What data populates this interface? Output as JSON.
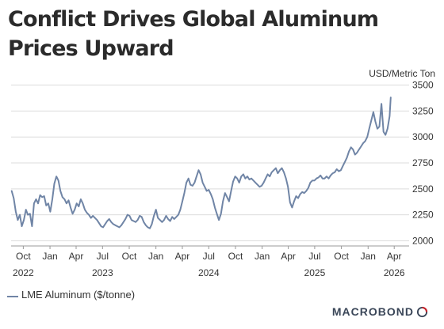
{
  "title": "Conflict Drives Global Aluminum Prices Upward",
  "brand": "MACROBOND",
  "chart_data": {
    "type": "line",
    "title": "Conflict Drives Global Aluminum Prices Upward",
    "xlabel": "",
    "ylabel": "USD/Metric Ton",
    "unit_label": "USD/Metric Ton",
    "ylim": [
      1950,
      3550
    ],
    "xlim": [
      "2022-08-20",
      "2026-04-25"
    ],
    "yticks": [
      2000,
      2250,
      2500,
      2750,
      3000,
      3250,
      3500
    ],
    "xticks": [
      {
        "date": "2022-10-01",
        "label": "Oct",
        "year": "2022"
      },
      {
        "date": "2023-01-01",
        "label": "Jan"
      },
      {
        "date": "2023-04-01",
        "label": "Apr"
      },
      {
        "date": "2023-07-01",
        "label": "Jul",
        "year": "2023"
      },
      {
        "date": "2023-10-01",
        "label": "Oct"
      },
      {
        "date": "2024-01-01",
        "label": "Jan"
      },
      {
        "date": "2024-04-01",
        "label": "Apr"
      },
      {
        "date": "2024-07-01",
        "label": "Jul",
        "year": "2024"
      },
      {
        "date": "2024-10-01",
        "label": "Oct"
      },
      {
        "date": "2025-01-01",
        "label": "Jan"
      },
      {
        "date": "2025-04-01",
        "label": "Apr"
      },
      {
        "date": "2025-07-01",
        "label": "Jul",
        "year": "2025"
      },
      {
        "date": "2025-10-01",
        "label": "Oct"
      },
      {
        "date": "2026-01-01",
        "label": "Jan"
      },
      {
        "date": "2026-04-01",
        "label": "Apr",
        "year": "2026"
      }
    ],
    "grid": "horizontal",
    "legend_position": "bottom-left",
    "colors": {
      "line": "#7085a6",
      "grid": "#dcdcdc",
      "axis": "#999999",
      "text": "#333333",
      "logo_red": "#c8242b"
    },
    "series": [
      {
        "name": "LME Aluminum ($/tonne)",
        "points": [
          [
            "2022-08-22",
            2480
          ],
          [
            "2022-08-29",
            2410
          ],
          [
            "2022-09-05",
            2280
          ],
          [
            "2022-09-12",
            2200
          ],
          [
            "2022-09-19",
            2250
          ],
          [
            "2022-09-26",
            2140
          ],
          [
            "2022-10-03",
            2200
          ],
          [
            "2022-10-10",
            2300
          ],
          [
            "2022-10-17",
            2250
          ],
          [
            "2022-10-24",
            2260
          ],
          [
            "2022-10-31",
            2140
          ],
          [
            "2022-11-07",
            2360
          ],
          [
            "2022-11-14",
            2400
          ],
          [
            "2022-11-21",
            2360
          ],
          [
            "2022-11-28",
            2440
          ],
          [
            "2022-12-05",
            2420
          ],
          [
            "2022-12-12",
            2430
          ],
          [
            "2022-12-19",
            2340
          ],
          [
            "2022-12-26",
            2360
          ],
          [
            "2023-01-02",
            2280
          ],
          [
            "2023-01-09",
            2400
          ],
          [
            "2023-01-16",
            2550
          ],
          [
            "2023-01-23",
            2620
          ],
          [
            "2023-01-30",
            2580
          ],
          [
            "2023-02-06",
            2480
          ],
          [
            "2023-02-13",
            2420
          ],
          [
            "2023-02-20",
            2400
          ],
          [
            "2023-02-27",
            2360
          ],
          [
            "2023-03-06",
            2390
          ],
          [
            "2023-03-13",
            2320
          ],
          [
            "2023-03-20",
            2260
          ],
          [
            "2023-03-27",
            2300
          ],
          [
            "2023-04-03",
            2360
          ],
          [
            "2023-04-10",
            2330
          ],
          [
            "2023-04-17",
            2400
          ],
          [
            "2023-04-24",
            2360
          ],
          [
            "2023-05-01",
            2300
          ],
          [
            "2023-05-08",
            2270
          ],
          [
            "2023-05-15",
            2250
          ],
          [
            "2023-05-22",
            2220
          ],
          [
            "2023-05-29",
            2240
          ],
          [
            "2023-06-05",
            2220
          ],
          [
            "2023-06-12",
            2200
          ],
          [
            "2023-06-19",
            2170
          ],
          [
            "2023-06-26",
            2140
          ],
          [
            "2023-07-03",
            2130
          ],
          [
            "2023-07-10",
            2160
          ],
          [
            "2023-07-17",
            2190
          ],
          [
            "2023-07-24",
            2210
          ],
          [
            "2023-07-31",
            2180
          ],
          [
            "2023-08-07",
            2160
          ],
          [
            "2023-08-14",
            2150
          ],
          [
            "2023-08-21",
            2140
          ],
          [
            "2023-08-28",
            2130
          ],
          [
            "2023-09-04",
            2150
          ],
          [
            "2023-09-11",
            2180
          ],
          [
            "2023-09-18",
            2210
          ],
          [
            "2023-09-25",
            2250
          ],
          [
            "2023-10-02",
            2240
          ],
          [
            "2023-10-09",
            2200
          ],
          [
            "2023-10-16",
            2190
          ],
          [
            "2023-10-23",
            2180
          ],
          [
            "2023-10-30",
            2200
          ],
          [
            "2023-11-06",
            2240
          ],
          [
            "2023-11-13",
            2230
          ],
          [
            "2023-11-20",
            2180
          ],
          [
            "2023-11-27",
            2150
          ],
          [
            "2023-12-04",
            2130
          ],
          [
            "2023-12-11",
            2120
          ],
          [
            "2023-12-18",
            2160
          ],
          [
            "2023-12-25",
            2240
          ],
          [
            "2024-01-01",
            2300
          ],
          [
            "2024-01-08",
            2220
          ],
          [
            "2024-01-15",
            2200
          ],
          [
            "2024-01-22",
            2180
          ],
          [
            "2024-01-29",
            2200
          ],
          [
            "2024-02-05",
            2240
          ],
          [
            "2024-02-12",
            2210
          ],
          [
            "2024-02-19",
            2190
          ],
          [
            "2024-02-26",
            2230
          ],
          [
            "2024-03-04",
            2210
          ],
          [
            "2024-03-11",
            2230
          ],
          [
            "2024-03-18",
            2250
          ],
          [
            "2024-03-25",
            2300
          ],
          [
            "2024-04-01",
            2380
          ],
          [
            "2024-04-08",
            2460
          ],
          [
            "2024-04-15",
            2560
          ],
          [
            "2024-04-22",
            2600
          ],
          [
            "2024-04-29",
            2540
          ],
          [
            "2024-05-06",
            2530
          ],
          [
            "2024-05-13",
            2560
          ],
          [
            "2024-05-20",
            2620
          ],
          [
            "2024-05-27",
            2680
          ],
          [
            "2024-06-03",
            2640
          ],
          [
            "2024-06-10",
            2560
          ],
          [
            "2024-06-17",
            2520
          ],
          [
            "2024-06-24",
            2480
          ],
          [
            "2024-07-01",
            2490
          ],
          [
            "2024-07-08",
            2450
          ],
          [
            "2024-07-15",
            2400
          ],
          [
            "2024-07-22",
            2320
          ],
          [
            "2024-07-29",
            2260
          ],
          [
            "2024-08-05",
            2200
          ],
          [
            "2024-08-12",
            2260
          ],
          [
            "2024-08-19",
            2380
          ],
          [
            "2024-08-26",
            2460
          ],
          [
            "2024-09-02",
            2420
          ],
          [
            "2024-09-09",
            2380
          ],
          [
            "2024-09-16",
            2480
          ],
          [
            "2024-09-23",
            2570
          ],
          [
            "2024-09-30",
            2620
          ],
          [
            "2024-10-07",
            2600
          ],
          [
            "2024-10-14",
            2560
          ],
          [
            "2024-10-21",
            2620
          ],
          [
            "2024-10-28",
            2640
          ],
          [
            "2024-11-04",
            2600
          ],
          [
            "2024-11-11",
            2620
          ],
          [
            "2024-11-18",
            2590
          ],
          [
            "2024-11-25",
            2600
          ],
          [
            "2024-12-02",
            2580
          ],
          [
            "2024-12-09",
            2560
          ],
          [
            "2024-12-16",
            2540
          ],
          [
            "2024-12-23",
            2520
          ],
          [
            "2024-12-30",
            2530
          ],
          [
            "2025-01-06",
            2560
          ],
          [
            "2025-01-13",
            2600
          ],
          [
            "2025-01-20",
            2640
          ],
          [
            "2025-01-27",
            2620
          ],
          [
            "2025-02-03",
            2660
          ],
          [
            "2025-02-10",
            2680
          ],
          [
            "2025-02-17",
            2700
          ],
          [
            "2025-02-24",
            2650
          ],
          [
            "2025-03-03",
            2680
          ],
          [
            "2025-03-10",
            2700
          ],
          [
            "2025-03-17",
            2660
          ],
          [
            "2025-03-24",
            2600
          ],
          [
            "2025-03-31",
            2520
          ],
          [
            "2025-04-07",
            2370
          ],
          [
            "2025-04-14",
            2320
          ],
          [
            "2025-04-21",
            2380
          ],
          [
            "2025-04-28",
            2430
          ],
          [
            "2025-05-05",
            2410
          ],
          [
            "2025-05-12",
            2450
          ],
          [
            "2025-05-19",
            2470
          ],
          [
            "2025-05-26",
            2460
          ],
          [
            "2025-06-02",
            2480
          ],
          [
            "2025-06-09",
            2510
          ],
          [
            "2025-06-16",
            2560
          ],
          [
            "2025-06-23",
            2580
          ],
          [
            "2025-06-30",
            2580
          ],
          [
            "2025-07-07",
            2600
          ],
          [
            "2025-07-14",
            2610
          ],
          [
            "2025-07-21",
            2630
          ],
          [
            "2025-07-28",
            2600
          ],
          [
            "2025-08-04",
            2600
          ],
          [
            "2025-08-11",
            2620
          ],
          [
            "2025-08-18",
            2600
          ],
          [
            "2025-08-25",
            2630
          ],
          [
            "2025-09-01",
            2650
          ],
          [
            "2025-09-08",
            2660
          ],
          [
            "2025-09-15",
            2690
          ],
          [
            "2025-09-22",
            2670
          ],
          [
            "2025-09-29",
            2680
          ],
          [
            "2025-10-06",
            2720
          ],
          [
            "2025-10-13",
            2760
          ],
          [
            "2025-10-20",
            2800
          ],
          [
            "2025-10-27",
            2860
          ],
          [
            "2025-11-03",
            2900
          ],
          [
            "2025-11-10",
            2880
          ],
          [
            "2025-11-17",
            2830
          ],
          [
            "2025-11-24",
            2850
          ],
          [
            "2025-12-01",
            2880
          ],
          [
            "2025-12-08",
            2910
          ],
          [
            "2025-12-15",
            2940
          ],
          [
            "2025-12-22",
            2960
          ],
          [
            "2025-12-29",
            3000
          ],
          [
            "2026-01-05",
            3080
          ],
          [
            "2026-01-12",
            3160
          ],
          [
            "2026-01-19",
            3240
          ],
          [
            "2026-01-26",
            3150
          ],
          [
            "2026-02-02",
            3080
          ],
          [
            "2026-02-09",
            3100
          ],
          [
            "2026-02-16",
            3320
          ],
          [
            "2026-02-23",
            3050
          ],
          [
            "2026-03-02",
            3020
          ],
          [
            "2026-03-09",
            3080
          ],
          [
            "2026-03-16",
            3200
          ],
          [
            "2026-03-20",
            3380
          ]
        ]
      }
    ]
  },
  "legend": {
    "label": "LME Aluminum ($/tonne)"
  }
}
